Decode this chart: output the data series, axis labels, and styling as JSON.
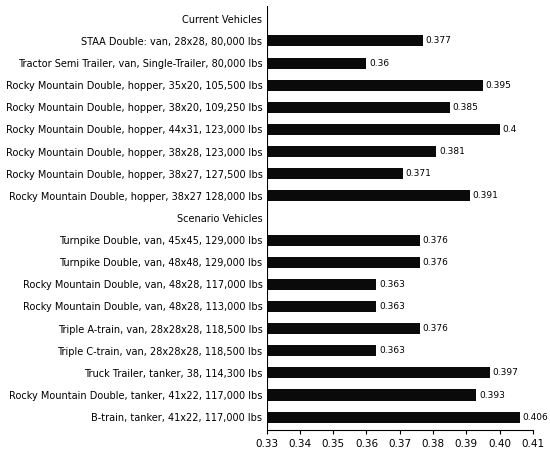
{
  "categories": [
    "Current Vehicles",
    "STAA Double: van, 28x28, 80,000 lbs",
    "Tractor Semi Trailer, van, Single-Trailer, 80,000 lbs",
    "Rocky Mountain Double, hopper, 35x20, 105,500 lbs",
    "Rocky Mountain Double, hopper, 38x20, 109,250 lbs",
    "Rocky Mountain Double, hopper, 44x31, 123,000 lbs",
    "Rocky Mountain Double, hopper, 38x28, 123,000 lbs",
    "Rocky Mountain Double, hopper, 38x27, 127,500 lbs",
    "Rocky Mountain Double, hopper, 38x27 128,000 lbs",
    "Scenario Vehicles",
    "Turnpike Double, van, 45x45, 129,000 lbs",
    "Turnpike Double, van, 48x48, 129,000 lbs",
    "Rocky Mountain Double, van, 48x28, 117,000 lbs",
    "Rocky Mountain Double, van, 48x28, 113,000 lbs",
    "Triple A-train, van, 28x28x28, 118,500 lbs",
    "Triple C-train, van, 28x28x28, 118,500 lbs",
    "Truck Trailer, tanker, 38, 114,300 lbs",
    "Rocky Mountain Double, tanker, 41x22, 117,000 lbs",
    "B-train, tanker, 41x22, 117,000 lbs"
  ],
  "values": [
    null,
    0.377,
    0.36,
    0.395,
    0.385,
    0.4,
    0.381,
    0.371,
    0.391,
    null,
    0.376,
    0.376,
    0.363,
    0.363,
    0.376,
    0.363,
    0.397,
    0.393,
    0.406
  ],
  "value_labels": [
    "",
    "0.377",
    "0.36",
    "0.395",
    "0.385",
    "0.4",
    "0.381",
    "0.371",
    "0.391",
    "",
    "0.376",
    "0.376",
    "0.363",
    "0.363",
    "0.376",
    "0.363",
    "0.397",
    "0.393",
    "0.406"
  ],
  "bar_color": "#0a0a0a",
  "label_color": "#000000",
  "background_color": "#ffffff",
  "xlim_min": 0.33,
  "xlim_max": 0.41,
  "xticks": [
    0.33,
    0.34,
    0.35,
    0.36,
    0.37,
    0.38,
    0.39,
    0.4,
    0.41
  ],
  "xtick_labels": [
    "0.33",
    "0.34",
    "0.35",
    "0.36",
    "0.37",
    "0.38",
    "0.39",
    "0.40",
    "0.41"
  ],
  "header_indices": [
    0,
    9
  ],
  "bar_height": 0.5,
  "label_fontsize": 7.0,
  "value_fontsize": 6.5,
  "xtick_fontsize": 7.5
}
